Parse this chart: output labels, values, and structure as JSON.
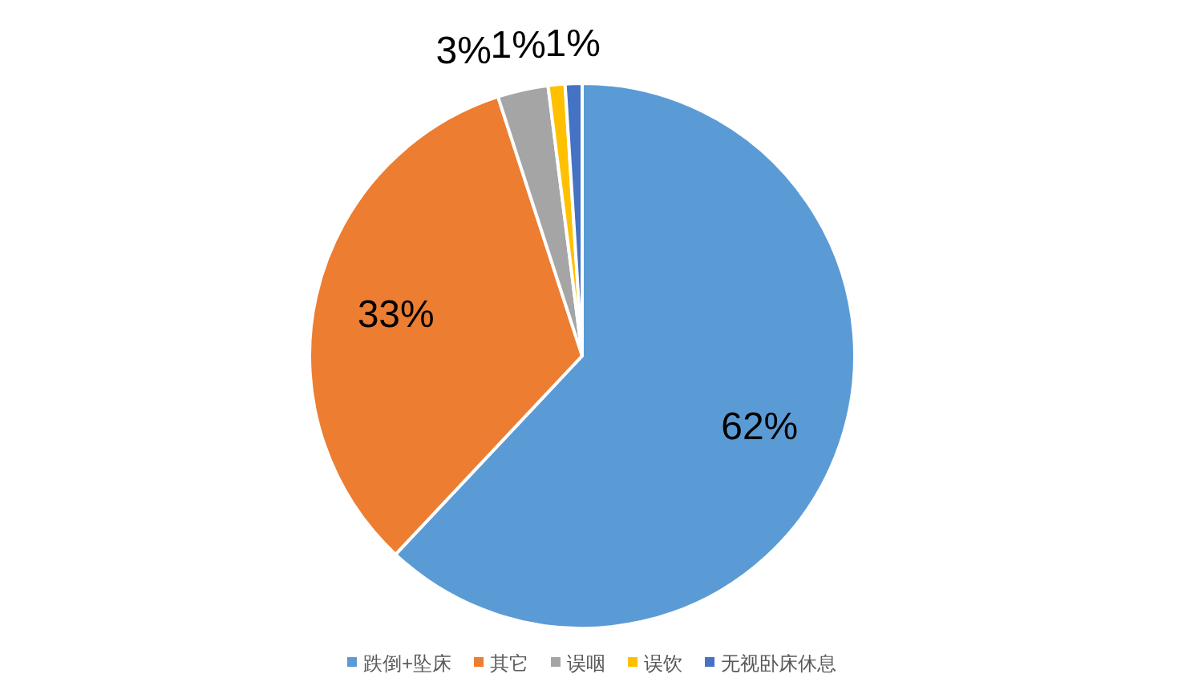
{
  "chart_data": {
    "type": "pie",
    "categories": [
      "跌倒+坠床",
      "其它",
      "误咽",
      "误饮",
      "无视卧床休息"
    ],
    "values": [
      62,
      33,
      3,
      1,
      1
    ],
    "colors": [
      "#5b9bd5",
      "#ed7d31",
      "#a5a5a5",
      "#ffc000",
      "#4472c4"
    ],
    "value_labels": [
      "62%",
      "33%",
      "3%",
      "1%",
      "1%"
    ],
    "legend": "bottom"
  }
}
